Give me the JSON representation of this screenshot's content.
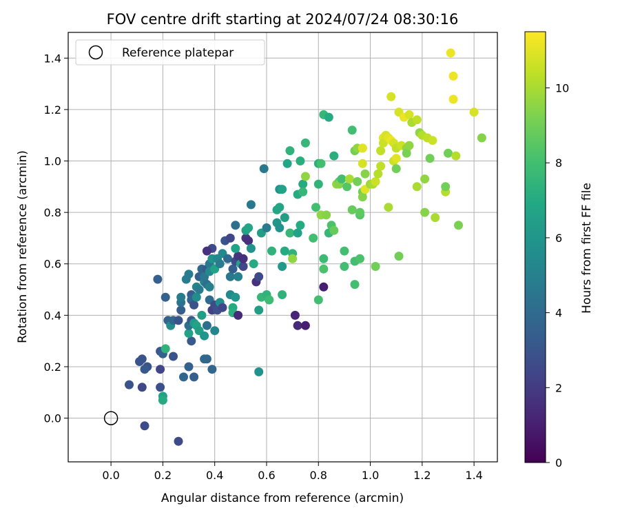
{
  "chart_data": {
    "type": "scatter",
    "title": "FOV centre drift starting at 2024/07/24 08:30:16",
    "xlabel": "Angular distance from reference (arcmin)",
    "ylabel": "Rotation from reference (arcmin)",
    "xlim": [
      -0.165,
      1.49
    ],
    "ylim": [
      -0.17,
      1.5
    ],
    "xticks": [
      0.0,
      0.2,
      0.4,
      0.6,
      0.8,
      1.0,
      1.2,
      1.4
    ],
    "xtick_labels": [
      "0.0",
      "0.2",
      "0.4",
      "0.6",
      "0.8",
      "1.0",
      "1.2",
      "1.4"
    ],
    "yticks": [
      0.0,
      0.2,
      0.4,
      0.6,
      0.8,
      1.0,
      1.2,
      1.4
    ],
    "ytick_labels": [
      "0.0",
      "0.2",
      "0.4",
      "0.6",
      "0.8",
      "1.0",
      "1.2",
      "1.4"
    ],
    "grid": true,
    "legend": {
      "placement": "upper-left",
      "entries": [
        {
          "label": "Reference platepar",
          "marker": "open-circle"
        }
      ]
    },
    "reference_point": {
      "x": 0.0,
      "y": 0.0
    },
    "colorbar": {
      "label": "Hours from first FF file",
      "range": [
        0,
        11.5
      ],
      "ticks": [
        0,
        2,
        4,
        6,
        8,
        10
      ],
      "tick_labels": [
        "0",
        "2",
        "4",
        "6",
        "8",
        "10"
      ],
      "colormap": "viridis"
    },
    "points_fields": [
      "x",
      "y",
      "hours"
    ],
    "points": [
      [
        0.13,
        -0.03,
        2.6
      ],
      [
        0.07,
        0.13,
        3.0
      ],
      [
        0.12,
        0.12,
        2.5
      ],
      [
        0.11,
        0.22,
        3.0
      ],
      [
        0.12,
        0.23,
        3.0
      ],
      [
        0.14,
        0.2,
        3.0
      ],
      [
        0.13,
        0.19,
        3.2
      ],
      [
        0.19,
        0.12,
        2.8
      ],
      [
        0.19,
        0.19,
        2.4
      ],
      [
        0.19,
        0.26,
        3.2
      ],
      [
        0.2,
        0.25,
        3.6
      ],
      [
        0.2,
        0.085,
        6.6
      ],
      [
        0.2,
        0.07,
        7.0
      ],
      [
        0.21,
        0.27,
        7.4
      ],
      [
        0.18,
        0.54,
        3.5
      ],
      [
        0.21,
        0.47,
        3.6
      ],
      [
        0.24,
        0.24,
        3.0
      ],
      [
        0.26,
        -0.09,
        2.6
      ],
      [
        0.28,
        0.16,
        3.8
      ],
      [
        0.3,
        0.2,
        3.6
      ],
      [
        0.32,
        0.16,
        3.5
      ],
      [
        0.31,
        0.3,
        3.2
      ],
      [
        0.3,
        0.33,
        6.6
      ],
      [
        0.3,
        0.36,
        4.2
      ],
      [
        0.31,
        0.38,
        3.2
      ],
      [
        0.32,
        0.37,
        6.2
      ],
      [
        0.33,
        0.36,
        6.6
      ],
      [
        0.34,
        0.34,
        6.4
      ],
      [
        0.35,
        0.4,
        6.4
      ],
      [
        0.36,
        0.32,
        6.0
      ],
      [
        0.36,
        0.23,
        4.0
      ],
      [
        0.37,
        0.23,
        3.8
      ],
      [
        0.37,
        0.36,
        4.2
      ],
      [
        0.39,
        0.19,
        3.8
      ],
      [
        0.4,
        0.34,
        5.2
      ],
      [
        0.38,
        0.46,
        4.0
      ],
      [
        0.39,
        0.42,
        2.2
      ],
      [
        0.4,
        0.44,
        2.6
      ],
      [
        0.41,
        0.42,
        2.8
      ],
      [
        0.42,
        0.45,
        5.6
      ],
      [
        0.43,
        0.43,
        2.4
      ],
      [
        0.46,
        0.48,
        5.4
      ],
      [
        0.47,
        0.43,
        7.0
      ],
      [
        0.47,
        0.41,
        7.2
      ],
      [
        0.49,
        0.4,
        1.4
      ],
      [
        0.48,
        0.47,
        6.0
      ],
      [
        0.22,
        0.38,
        3.6
      ],
      [
        0.23,
        0.36,
        5.6
      ],
      [
        0.24,
        0.38,
        3.8
      ],
      [
        0.26,
        0.38,
        3.0
      ],
      [
        0.27,
        0.42,
        3.4
      ],
      [
        0.27,
        0.45,
        4.4
      ],
      [
        0.27,
        0.47,
        4.8
      ],
      [
        0.29,
        0.54,
        4.8
      ],
      [
        0.3,
        0.56,
        4.8
      ],
      [
        0.31,
        0.48,
        3.4
      ],
      [
        0.31,
        0.46,
        3.8
      ],
      [
        0.32,
        0.44,
        3.0
      ],
      [
        0.33,
        0.47,
        5.6
      ],
      [
        0.33,
        0.51,
        5.2
      ],
      [
        0.34,
        0.5,
        4.8
      ],
      [
        0.34,
        0.55,
        3.6
      ],
      [
        0.35,
        0.58,
        3.8
      ],
      [
        0.36,
        0.53,
        5.0
      ],
      [
        0.36,
        0.55,
        4.6
      ],
      [
        0.37,
        0.52,
        4.2
      ],
      [
        0.37,
        0.58,
        3.2
      ],
      [
        0.38,
        0.6,
        4.6
      ],
      [
        0.38,
        0.57,
        5.4
      ],
      [
        0.38,
        0.51,
        5.0
      ],
      [
        0.39,
        0.62,
        5.8
      ],
      [
        0.39,
        0.66,
        2.6
      ],
      [
        0.37,
        0.65,
        1.6
      ],
      [
        0.4,
        0.58,
        6.6
      ],
      [
        0.41,
        0.62,
        5.4
      ],
      [
        0.42,
        0.6,
        4.8
      ],
      [
        0.43,
        0.64,
        5.4
      ],
      [
        0.44,
        0.69,
        3.0
      ],
      [
        0.45,
        0.62,
        4.0
      ],
      [
        0.46,
        0.7,
        2.4
      ],
      [
        0.46,
        0.55,
        4.6
      ],
      [
        0.47,
        0.58,
        3.4
      ],
      [
        0.48,
        0.61,
        2.6
      ],
      [
        0.49,
        0.63,
        1.8
      ],
      [
        0.49,
        0.55,
        5.0
      ],
      [
        0.5,
        0.6,
        6.6
      ],
      [
        0.51,
        0.59,
        2.4
      ],
      [
        0.51,
        0.62,
        1.6
      ],
      [
        0.52,
        0.7,
        1.8
      ],
      [
        0.53,
        0.69,
        1.6
      ],
      [
        0.48,
        0.66,
        6.6
      ],
      [
        0.48,
        0.75,
        4.2
      ],
      [
        0.52,
        0.73,
        6.6
      ],
      [
        0.53,
        0.74,
        6.8
      ],
      [
        0.54,
        0.66,
        5.8
      ],
      [
        0.54,
        0.83,
        4.6
      ],
      [
        0.55,
        0.6,
        7.0
      ],
      [
        0.56,
        0.53,
        1.6
      ],
      [
        0.57,
        0.55,
        2.6
      ],
      [
        0.57,
        0.42,
        6.4
      ],
      [
        0.57,
        0.18,
        5.8
      ],
      [
        0.58,
        0.47,
        7.6
      ],
      [
        0.58,
        0.72,
        6.4
      ],
      [
        0.59,
        0.97,
        4.6
      ],
      [
        0.6,
        0.74,
        4.8
      ],
      [
        0.6,
        0.48,
        7.4
      ],
      [
        0.61,
        0.46,
        7.2
      ],
      [
        0.61,
        0.46,
        7.8
      ],
      [
        0.62,
        0.65,
        7.4
      ],
      [
        0.64,
        0.76,
        6.0
      ],
      [
        0.65,
        0.89,
        5.8
      ],
      [
        0.64,
        0.81,
        6.8
      ],
      [
        0.65,
        0.82,
        6.8
      ],
      [
        0.65,
        0.74,
        5.8
      ],
      [
        0.66,
        0.89,
        6.6
      ],
      [
        0.66,
        0.48,
        7.4
      ],
      [
        0.66,
        0.59,
        6.2
      ],
      [
        0.67,
        0.65,
        7.0
      ],
      [
        0.67,
        0.78,
        6.4
      ],
      [
        0.68,
        0.99,
        6.8
      ],
      [
        0.69,
        1.04,
        7.4
      ],
      [
        0.69,
        0.72,
        7.6
      ],
      [
        0.7,
        0.64,
        7.4
      ],
      [
        0.7,
        0.62,
        9.6
      ],
      [
        0.71,
        0.4,
        1.2
      ],
      [
        0.72,
        0.36,
        1.4
      ],
      [
        0.72,
        0.87,
        7.0
      ],
      [
        0.72,
        0.72,
        6.6
      ],
      [
        0.73,
        0.75,
        7.0
      ],
      [
        0.73,
        1.0,
        7.2
      ],
      [
        0.74,
        0.91,
        7.0
      ],
      [
        0.74,
        0.88,
        7.6
      ],
      [
        0.75,
        0.94,
        9.6
      ],
      [
        0.75,
        1.07,
        7.6
      ],
      [
        0.75,
        0.36,
        1.0
      ],
      [
        0.78,
        0.7,
        8.0
      ],
      [
        0.79,
        0.82,
        8.0
      ],
      [
        0.8,
        0.46,
        8.0
      ],
      [
        0.8,
        0.91,
        7.4
      ],
      [
        0.8,
        0.99,
        7.2
      ],
      [
        0.81,
        0.99,
        8.0
      ],
      [
        0.81,
        0.79,
        9.6
      ],
      [
        0.82,
        0.58,
        8.2
      ],
      [
        0.82,
        0.62,
        7.8
      ],
      [
        0.82,
        0.51,
        1.0
      ],
      [
        0.82,
        1.18,
        7.6
      ],
      [
        0.83,
        0.79,
        9.4
      ],
      [
        0.84,
        0.72,
        7.6
      ],
      [
        0.84,
        1.17,
        7.0
      ],
      [
        0.85,
        0.75,
        8.2
      ],
      [
        0.86,
        1.02,
        7.2
      ],
      [
        0.86,
        0.73,
        8.8
      ],
      [
        0.87,
        0.91,
        9.6
      ],
      [
        0.88,
        0.92,
        8.6
      ],
      [
        0.88,
        0.91,
        9.4
      ],
      [
        0.89,
        0.93,
        8.0
      ],
      [
        0.9,
        0.59,
        8.0
      ],
      [
        0.9,
        0.65,
        8.0
      ],
      [
        0.91,
        0.9,
        8.4
      ],
      [
        0.92,
        0.93,
        10.0
      ],
      [
        0.93,
        0.81,
        8.8
      ],
      [
        0.93,
        1.12,
        8.0
      ],
      [
        0.94,
        0.52,
        8.0
      ],
      [
        0.94,
        0.61,
        8.0
      ],
      [
        0.94,
        1.04,
        9.0
      ],
      [
        0.95,
        1.05,
        9.6
      ],
      [
        0.95,
        0.92,
        9.0
      ],
      [
        0.96,
        0.79,
        8.4
      ],
      [
        0.96,
        0.8,
        8.6
      ],
      [
        0.96,
        0.62,
        8.2
      ],
      [
        0.97,
        1.05,
        10.4
      ],
      [
        0.97,
        0.99,
        10.8
      ],
      [
        0.97,
        1.05,
        11.0
      ],
      [
        0.97,
        0.88,
        9.0
      ],
      [
        0.97,
        0.86,
        9.4
      ],
      [
        0.98,
        0.89,
        11.0
      ],
      [
        0.98,
        0.95,
        9.4
      ],
      [
        1.0,
        0.91,
        9.8
      ],
      [
        1.01,
        0.91,
        10.0
      ],
      [
        1.02,
        0.92,
        10.6
      ],
      [
        1.02,
        0.59,
        9.0
      ],
      [
        1.03,
        0.95,
        10.2
      ],
      [
        1.04,
        0.98,
        10.4
      ],
      [
        1.04,
        1.04,
        10.4
      ],
      [
        1.05,
        1.09,
        11.0
      ],
      [
        1.05,
        1.07,
        10.6
      ],
      [
        1.06,
        1.1,
        10.8
      ],
      [
        1.07,
        1.09,
        11.0
      ],
      [
        1.07,
        0.82,
        10.0
      ],
      [
        1.08,
        1.08,
        11.2
      ],
      [
        1.08,
        1.25,
        10.8
      ],
      [
        1.09,
        1.07,
        10.8
      ],
      [
        1.09,
        1.0,
        10.6
      ],
      [
        1.1,
        1.05,
        10.4
      ],
      [
        1.1,
        0.97,
        9.0
      ],
      [
        1.1,
        1.01,
        11.0
      ],
      [
        1.11,
        0.63,
        9.0
      ],
      [
        1.11,
        1.19,
        10.8
      ],
      [
        1.12,
        1.06,
        10.6
      ],
      [
        1.13,
        1.17,
        11.2
      ],
      [
        1.14,
        1.05,
        9.6
      ],
      [
        1.14,
        1.03,
        9.2
      ],
      [
        1.15,
        1.18,
        10.8
      ],
      [
        1.15,
        1.06,
        9.6
      ],
      [
        1.16,
        1.15,
        10.0
      ],
      [
        1.18,
        0.9,
        10.0
      ],
      [
        1.18,
        1.16,
        10.4
      ],
      [
        1.19,
        1.11,
        9.6
      ],
      [
        1.2,
        1.1,
        10.2
      ],
      [
        1.21,
        0.8,
        9.4
      ],
      [
        1.21,
        0.93,
        9.6
      ],
      [
        1.22,
        1.09,
        10.4
      ],
      [
        1.23,
        1.01,
        9.0
      ],
      [
        1.24,
        1.08,
        10.6
      ],
      [
        1.25,
        0.78,
        10.0
      ],
      [
        1.29,
        0.88,
        10.2
      ],
      [
        1.29,
        0.9,
        9.0
      ],
      [
        1.3,
        1.03,
        9.0
      ],
      [
        1.31,
        1.42,
        11.2
      ],
      [
        1.32,
        1.33,
        11.2
      ],
      [
        1.32,
        1.24,
        11.2
      ],
      [
        1.33,
        1.02,
        10.2
      ],
      [
        1.34,
        0.75,
        9.2
      ],
      [
        1.4,
        1.19,
        10.8
      ],
      [
        1.43,
        1.09,
        9.4
      ]
    ]
  }
}
